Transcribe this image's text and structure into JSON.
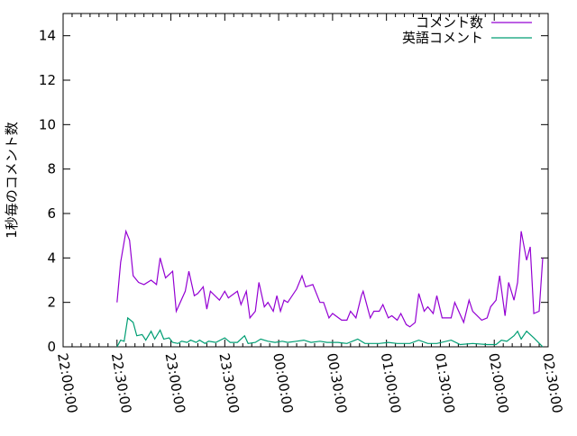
{
  "chart_data": {
    "type": "line",
    "title": "",
    "xlabel": "",
    "ylabel": "1秒毎のコメント数",
    "xlim": [
      "22:00:00",
      "02:30:00"
    ],
    "ylim": [
      0,
      15
    ],
    "xticks": [
      "22:00:00",
      "22:30:00",
      "23:00:00",
      "23:30:00",
      "00:00:00",
      "00:30:00",
      "01:00:00",
      "01:30:00",
      "02:00:00",
      "02:30:00"
    ],
    "yticks": [
      "0",
      "2",
      "4",
      "6",
      "8",
      "10",
      "12",
      "14"
    ],
    "grid": false,
    "legend_position": "top-right",
    "series": [
      {
        "name": "コメント数",
        "color": "#9400d3",
        "points": [
          [
            "22:30",
            2.0
          ],
          [
            "22:32",
            3.8
          ],
          [
            "22:35",
            5.2
          ],
          [
            "22:37",
            4.8
          ],
          [
            "22:39",
            3.2
          ],
          [
            "22:42",
            2.9
          ],
          [
            "22:45",
            2.8
          ],
          [
            "22:49",
            3.0
          ],
          [
            "22:52",
            2.8
          ],
          [
            "22:54",
            4.0
          ],
          [
            "22:57",
            3.1
          ],
          [
            "23:01",
            3.4
          ],
          [
            "23:03",
            1.6
          ],
          [
            "23:08",
            2.5
          ],
          [
            "23:10",
            3.4
          ],
          [
            "23:13",
            2.3
          ],
          [
            "23:15",
            2.4
          ],
          [
            "23:18",
            2.7
          ],
          [
            "23:20",
            1.7
          ],
          [
            "23:22",
            2.5
          ],
          [
            "23:27",
            2.1
          ],
          [
            "23:30",
            2.5
          ],
          [
            "23:32",
            2.2
          ],
          [
            "23:37",
            2.5
          ],
          [
            "23:39",
            1.9
          ],
          [
            "23:42",
            2.5
          ],
          [
            "23:44",
            1.3
          ],
          [
            "23:47",
            1.6
          ],
          [
            "23:49",
            2.9
          ],
          [
            "23:52",
            1.8
          ],
          [
            "23:54",
            2.0
          ],
          [
            "23:57",
            1.6
          ],
          [
            "23:59",
            2.3
          ],
          [
            "00:01",
            1.6
          ],
          [
            "00:03",
            2.1
          ],
          [
            "00:05",
            2.0
          ],
          [
            "00:10",
            2.6
          ],
          [
            "00:13",
            3.2
          ],
          [
            "00:15",
            2.7
          ],
          [
            "00:19",
            2.8
          ],
          [
            "00:23",
            2.0
          ],
          [
            "00:25",
            2.0
          ],
          [
            "00:28",
            1.3
          ],
          [
            "00:30",
            1.5
          ],
          [
            "00:35",
            1.2
          ],
          [
            "00:38",
            1.2
          ],
          [
            "00:40",
            1.6
          ],
          [
            "00:43",
            1.3
          ],
          [
            "00:46",
            2.3
          ],
          [
            "00:47",
            2.5
          ],
          [
            "00:51",
            1.3
          ],
          [
            "00:53",
            1.6
          ],
          [
            "00:56",
            1.6
          ],
          [
            "00:58",
            1.9
          ],
          [
            "01:01",
            1.3
          ],
          [
            "01:03",
            1.4
          ],
          [
            "01:06",
            1.2
          ],
          [
            "01:08",
            1.5
          ],
          [
            "01:11",
            1.0
          ],
          [
            "01:13",
            0.9
          ],
          [
            "01:16",
            1.1
          ],
          [
            "01:18",
            2.4
          ],
          [
            "01:21",
            1.6
          ],
          [
            "01:23",
            1.8
          ],
          [
            "01:26",
            1.5
          ],
          [
            "01:28",
            2.3
          ],
          [
            "01:31",
            1.3
          ],
          [
            "01:33",
            1.3
          ],
          [
            "01:36",
            1.3
          ],
          [
            "01:38",
            2.0
          ],
          [
            "01:43",
            1.1
          ],
          [
            "01:46",
            2.1
          ],
          [
            "01:48",
            1.6
          ],
          [
            "01:53",
            1.2
          ],
          [
            "01:56",
            1.3
          ],
          [
            "01:58",
            1.8
          ],
          [
            "02:01",
            2.1
          ],
          [
            "02:03",
            3.2
          ],
          [
            "02:06",
            1.4
          ],
          [
            "02:08",
            2.9
          ],
          [
            "02:11",
            2.1
          ],
          [
            "02:13",
            2.9
          ],
          [
            "02:15",
            5.2
          ],
          [
            "02:18",
            3.9
          ],
          [
            "02:20",
            4.5
          ],
          [
            "02:22",
            1.5
          ],
          [
            "02:25",
            1.6
          ],
          [
            "02:27",
            4.0
          ]
        ]
      },
      {
        "name": "英語コメント",
        "color": "#009e73",
        "points": [
          [
            "22:30",
            0.0
          ],
          [
            "22:32",
            0.3
          ],
          [
            "22:34",
            0.25
          ],
          [
            "22:36",
            1.3
          ],
          [
            "22:39",
            1.1
          ],
          [
            "22:41",
            0.5
          ],
          [
            "22:44",
            0.55
          ],
          [
            "22:46",
            0.3
          ],
          [
            "22:49",
            0.7
          ],
          [
            "22:51",
            0.35
          ],
          [
            "22:54",
            0.75
          ],
          [
            "22:56",
            0.35
          ],
          [
            "22:59",
            0.4
          ],
          [
            "23:01",
            0.2
          ],
          [
            "23:04",
            0.15
          ],
          [
            "23:06",
            0.25
          ],
          [
            "23:09",
            0.2
          ],
          [
            "23:11",
            0.3
          ],
          [
            "23:14",
            0.2
          ],
          [
            "23:16",
            0.3
          ],
          [
            "23:19",
            0.15
          ],
          [
            "23:21",
            0.25
          ],
          [
            "23:25",
            0.2
          ],
          [
            "23:30",
            0.4
          ],
          [
            "23:33",
            0.2
          ],
          [
            "23:37",
            0.2
          ],
          [
            "23:41",
            0.5
          ],
          [
            "23:43",
            0.15
          ],
          [
            "23:47",
            0.2
          ],
          [
            "23:50",
            0.35
          ],
          [
            "23:54",
            0.25
          ],
          [
            "23:58",
            0.2
          ],
          [
            "00:02",
            0.25
          ],
          [
            "00:05",
            0.2
          ],
          [
            "00:10",
            0.25
          ],
          [
            "00:14",
            0.3
          ],
          [
            "00:18",
            0.2
          ],
          [
            "00:23",
            0.25
          ],
          [
            "00:27",
            0.2
          ],
          [
            "00:33",
            0.2
          ],
          [
            "00:38",
            0.15
          ],
          [
            "00:44",
            0.35
          ],
          [
            "00:48",
            0.15
          ],
          [
            "00:56",
            0.15
          ],
          [
            "01:01",
            0.2
          ],
          [
            "01:06",
            0.15
          ],
          [
            "01:13",
            0.15
          ],
          [
            "01:18",
            0.3
          ],
          [
            "01:23",
            0.15
          ],
          [
            "01:28",
            0.15
          ],
          [
            "01:36",
            0.3
          ],
          [
            "01:41",
            0.1
          ],
          [
            "01:48",
            0.15
          ],
          [
            "01:56",
            0.1
          ],
          [
            "02:01",
            0.1
          ],
          [
            "02:04",
            0.3
          ],
          [
            "02:07",
            0.25
          ],
          [
            "02:11",
            0.5
          ],
          [
            "02:13",
            0.7
          ],
          [
            "02:15",
            0.35
          ],
          [
            "02:18",
            0.7
          ],
          [
            "02:22",
            0.4
          ],
          [
            "02:27",
            0.0
          ]
        ]
      }
    ]
  }
}
